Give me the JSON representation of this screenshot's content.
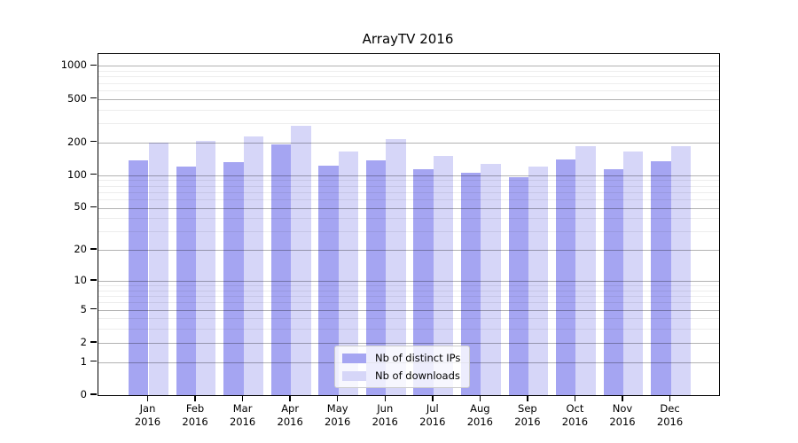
{
  "chart_data": {
    "type": "bar",
    "title": "ArrayTV 2016",
    "x_axis_second_line": "2016",
    "categories": [
      "Jan",
      "Feb",
      "Mar",
      "Apr",
      "May",
      "Jun",
      "Jul",
      "Aug",
      "Sep",
      "Oct",
      "Nov",
      "Dec"
    ],
    "series": [
      {
        "name": "Nb of distinct IPs",
        "color": "#a5a5f2",
        "values": [
          136,
          120,
          132,
          192,
          122,
          136,
          113,
          106,
          95,
          140,
          114,
          134
        ]
      },
      {
        "name": "Nb of downloads",
        "color": "#d6d6f8",
        "values": [
          200,
          206,
          227,
          284,
          165,
          213,
          150,
          126,
          120,
          183,
          164,
          186
        ]
      }
    ],
    "y_scale": "symlog",
    "y_ticks": [
      0,
      1,
      2,
      5,
      10,
      20,
      50,
      100,
      200,
      500,
      1000
    ],
    "y_minor_ticks": [
      3,
      4,
      6,
      7,
      8,
      9,
      30,
      40,
      60,
      70,
      80,
      90,
      300,
      400,
      600,
      700,
      800,
      900
    ],
    "ylim": [
      0,
      1280
    ],
    "grid": true,
    "legend_position": "lower center"
  }
}
